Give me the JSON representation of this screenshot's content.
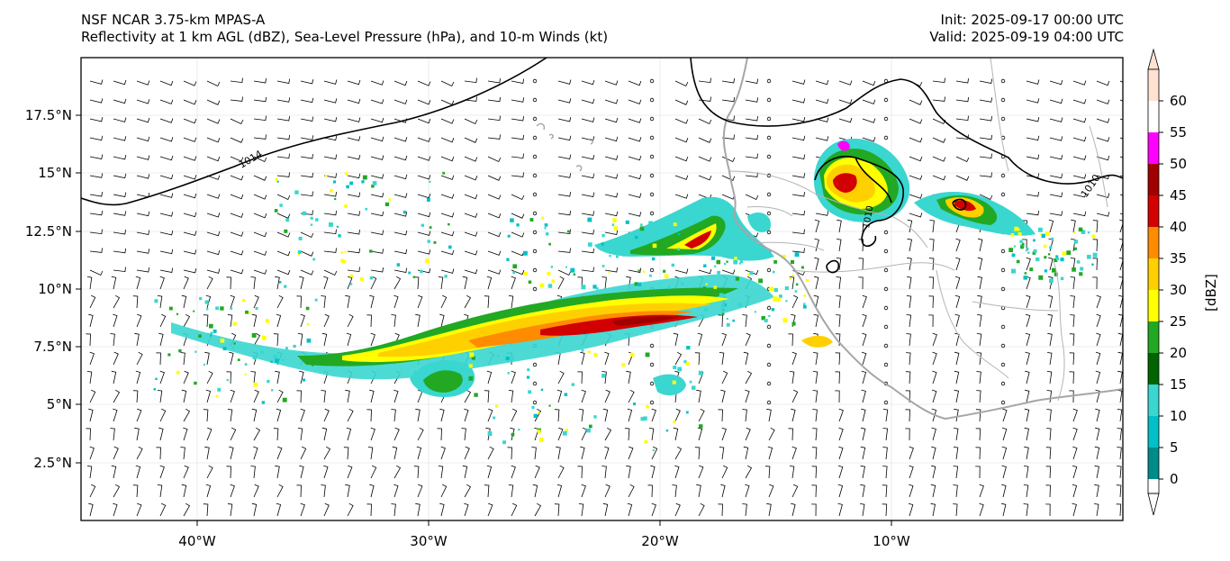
{
  "header": {
    "left_line1": "NSF NCAR 3.75-km MPAS-A",
    "left_line2": "Reflectivity at 1 km AGL (dBZ), Sea-Level Pressure (hPa), and 10-m Winds (kt)",
    "right_line1": "Init: 2025-09-17 00:00 UTC",
    "right_line2": "Valid: 2025-09-19 04:00 UTC"
  },
  "map": {
    "lon_range": [
      -45,
      0
    ],
    "lat_range": [
      0,
      20
    ],
    "lat_ticks": [
      "17.5°N",
      "15°N",
      "12.5°N",
      "10°N",
      "7.5°N",
      "5°N",
      "2.5°N"
    ],
    "lon_ticks": [
      "40°W",
      "30°W",
      "20°W",
      "10°W"
    ],
    "isobars": [
      {
        "label": "1014"
      },
      {
        "label": "1010"
      },
      {
        "label": "1010"
      }
    ]
  },
  "colorbar": {
    "label": "[dBZ]",
    "ticks": [
      "0",
      "5",
      "10",
      "15",
      "20",
      "25",
      "30",
      "35",
      "40",
      "45",
      "50",
      "55",
      "60"
    ],
    "colors": [
      "#ffffff",
      "#008b8b",
      "#00c0c8",
      "#3ad6d0",
      "#006400",
      "#22a822",
      "#ffff00",
      "#ffd000",
      "#ff8c00",
      "#d20000",
      "#a00000",
      "#ff00ff",
      "#ffe2d2"
    ]
  }
}
